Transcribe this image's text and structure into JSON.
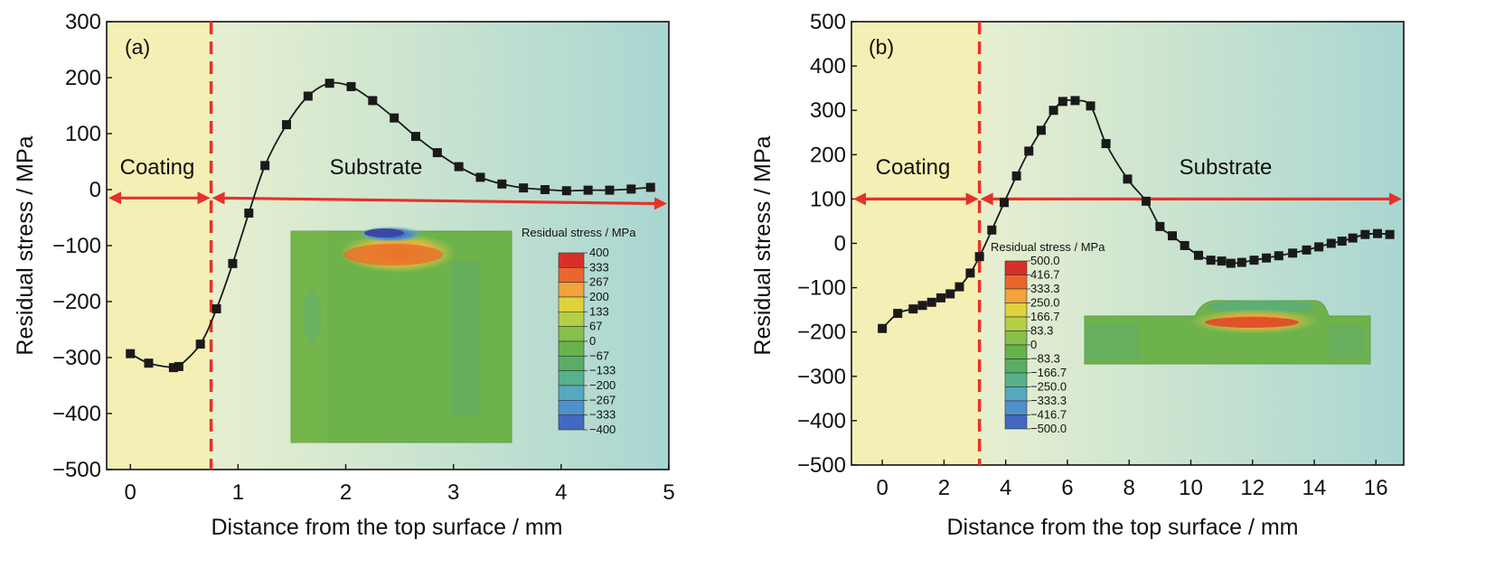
{
  "chart_data": [
    {
      "type": "line",
      "panel_label": "(a)",
      "xlabel": "Distance from the top surface / mm",
      "ylabel": "Residual stress / MPa",
      "xlim": [
        -0.22,
        5.0
      ],
      "ylim": [
        -500,
        300
      ],
      "xticks": [
        0,
        1,
        2,
        3,
        4,
        5
      ],
      "yticks": [
        300,
        200,
        100,
        0,
        -100,
        -200,
        -300,
        -400,
        -500
      ],
      "ytick_labels": [
        "300",
        "200",
        "100",
        "0",
        "−100",
        "−200",
        "−300",
        "−400",
        "−500"
      ],
      "boundary_x": 0.75,
      "region_labels": {
        "left": "Coating",
        "right": "Substrate"
      },
      "arrow_y": {
        "left": -15,
        "right_start": -15,
        "right_end": -25
      },
      "region_label_y": 40,
      "series": [
        {
          "x": [
            0,
            0.17,
            0.4,
            0.45,
            0.65,
            0.8,
            0.95,
            1.1,
            1.25,
            1.45,
            1.65,
            1.85,
            2.05,
            2.25,
            2.45,
            2.65,
            2.85,
            3.05,
            3.25,
            3.45,
            3.65,
            3.85,
            4.05,
            4.25,
            4.45,
            4.65,
            4.83
          ],
          "values": [
            -293,
            -310,
            -318,
            -316,
            -276,
            -213,
            -132,
            -42,
            43,
            116,
            167,
            190,
            184,
            159,
            128,
            95,
            66,
            41,
            22,
            10,
            3,
            0,
            -2,
            -1,
            -1,
            1,
            4
          ]
        }
      ],
      "inset": {
        "title": "Residual stress / MPa",
        "colorbar_labels": [
          "400",
          "333",
          "267",
          "200",
          "133",
          "67",
          "0",
          "−67",
          "−133",
          "−200",
          "−267",
          "−333",
          "−400"
        ]
      }
    },
    {
      "type": "line",
      "panel_label": "(b)",
      "xlabel": "Distance from the top surface / mm",
      "ylabel": "Residual stress / MPa",
      "xlim": [
        -1.0,
        16.9
      ],
      "ylim": [
        -500,
        500
      ],
      "xticks": [
        0,
        2,
        4,
        6,
        8,
        10,
        12,
        14,
        16
      ],
      "yticks": [
        500,
        400,
        300,
        200,
        100,
        0,
        -100,
        -200,
        -300,
        -400,
        -500
      ],
      "ytick_labels": [
        "500",
        "400",
        "300",
        "200",
        "100",
        "0",
        "−100",
        "−200",
        "−300",
        "−400",
        "−500"
      ],
      "boundary_x": 3.15,
      "region_labels": {
        "left": "Coating",
        "right": "Substrate"
      },
      "arrow_y": {
        "left": 100,
        "right_start": 100,
        "right_end": 100
      },
      "region_label_y": 170,
      "series": [
        {
          "x": [
            0,
            0.5,
            1.0,
            1.3,
            1.6,
            1.9,
            2.2,
            2.5,
            2.85,
            3.15,
            3.55,
            3.95,
            4.35,
            4.75,
            5.15,
            5.55,
            5.85,
            6.25,
            6.75,
            7.25,
            7.95,
            8.55,
            9.0,
            9.4,
            9.8,
            10.25,
            10.65,
            11.0,
            11.3,
            11.65,
            12.05,
            12.45,
            12.85,
            13.3,
            13.75,
            14.15,
            14.55,
            14.9,
            15.25,
            15.65,
            16.05,
            16.45
          ],
          "values": [
            -192,
            -158,
            -148,
            -140,
            -133,
            -123,
            -114,
            -98,
            -67,
            -30,
            30,
            92,
            152,
            208,
            255,
            300,
            320,
            322,
            310,
            225,
            145,
            95,
            38,
            17,
            -5,
            -27,
            -38,
            -40,
            -45,
            -43,
            -38,
            -33,
            -28,
            -22,
            -15,
            -8,
            0,
            5,
            12,
            20,
            22,
            20
          ]
        }
      ],
      "inset": {
        "title": "Residual stress / MPa",
        "colorbar_labels": [
          "500.0",
          "416.7",
          "333.3",
          "250.0",
          "166.7",
          "83.3",
          "0",
          "−83.3",
          "−166.7",
          "−250.0",
          "−333.3",
          "−416.7",
          "−500.0"
        ]
      }
    }
  ],
  "colors": {
    "coating_fill": "#f4efb4",
    "substrate_start": "#e7efd0",
    "substrate_end": "#a9d6d1",
    "boundary_line": "#e8312a",
    "arrow": "#e4322b",
    "series_line": "#1a1a1a",
    "marker": "#1a1a1a",
    "inset_base": "#6fb54c",
    "colorbar": [
      "#d7302a",
      "#e9672c",
      "#f2a33a",
      "#dfd23f",
      "#b5cf45",
      "#86c14a",
      "#67b34b",
      "#5aae63",
      "#58b08c",
      "#57a9bf",
      "#4f90cf",
      "#4169c0",
      "#3b3f99"
    ]
  }
}
